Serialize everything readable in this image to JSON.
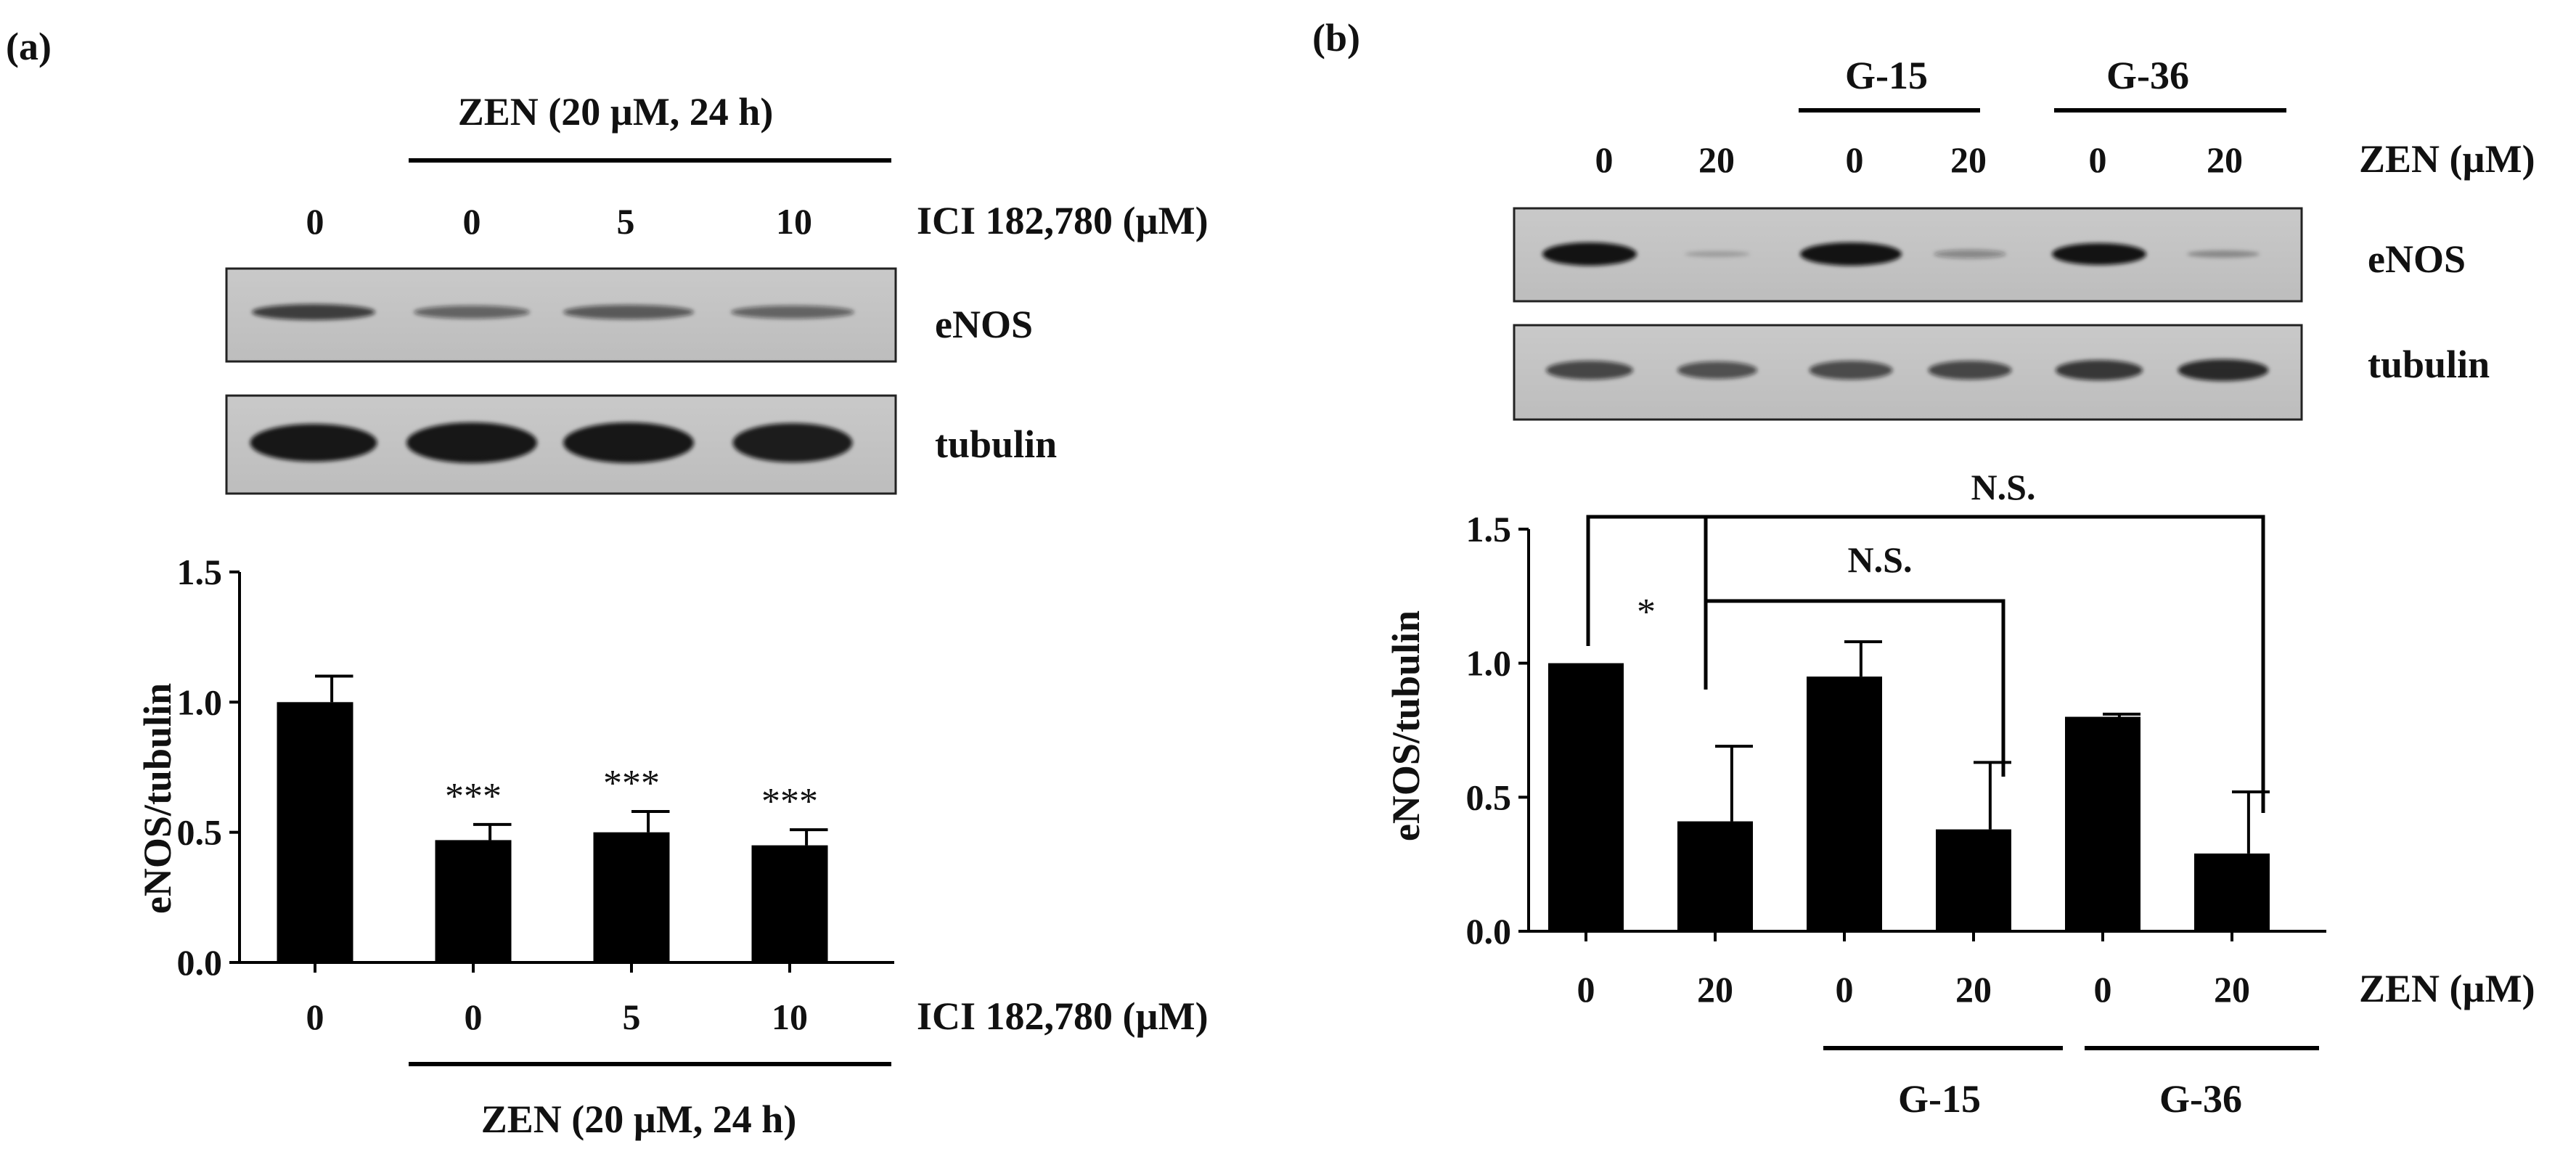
{
  "panels": {
    "a": {
      "label": "(a)",
      "treatment_top": "ZEN (20 µM, 24 h)",
      "treatment_bottom": "ZEN (20 µM, 24 h)",
      "inhibitor_label_top": "ICI 182,780  (µM)",
      "inhibitor_label_bottom": "ICI 182,780  (µM)",
      "lanes": [
        "0",
        "0",
        "5",
        "10"
      ],
      "blot_labels": [
        "eNOS",
        "tubulin"
      ]
    },
    "b": {
      "label": "(b)",
      "group_labels_top": [
        "G-15",
        "G-36"
      ],
      "group_labels_bottom": [
        "G-15",
        "G-36"
      ],
      "zen_label_top": "ZEN (µM)",
      "zen_label_bottom": "ZEN (µM)",
      "lanes": [
        "0",
        "20",
        "0",
        "20",
        "0",
        "20"
      ],
      "blot_labels": [
        "eNOS",
        "tubulin"
      ],
      "annotations": [
        "*",
        "N.S.",
        "N.S."
      ]
    }
  },
  "chart_data": [
    {
      "type": "bar",
      "panel": "(a)",
      "categories": [
        "0",
        "0",
        "5",
        "10"
      ],
      "values": [
        1.0,
        0.47,
        0.5,
        0.45
      ],
      "errors": [
        0.1,
        0.06,
        0.08,
        0.06
      ],
      "significance": [
        "",
        "***",
        "***",
        "***"
      ],
      "ylabel": "eNOS/tubulin",
      "xlabel": "ICI 182,780  (µM)",
      "ylim": [
        0,
        1.5
      ],
      "yticks": [
        "0.0",
        "0.5",
        "1.0",
        "1.5"
      ],
      "bar_color": "#000000"
    },
    {
      "type": "bar",
      "panel": "(b)",
      "categories": [
        "0",
        "20",
        "0",
        "20",
        "0",
        "20"
      ],
      "values": [
        1.0,
        0.41,
        0.95,
        0.38,
        0.8,
        0.29
      ],
      "errors": [
        0.0,
        0.28,
        0.13,
        0.25,
        0.01,
        0.23
      ],
      "ylabel": "eNOS/tubulin",
      "xlabel": "ZEN (µM)",
      "ylim": [
        0,
        1.5
      ],
      "yticks": [
        "0.0",
        "0.5",
        "1.0",
        "1.5"
      ],
      "comparisons": [
        {
          "from": 0,
          "to": 1,
          "label": "*"
        },
        {
          "from": 1,
          "to": 3,
          "label": "N.S."
        },
        {
          "from": 1,
          "to": 5,
          "label": "N.S."
        }
      ],
      "bar_color": "#000000"
    }
  ]
}
